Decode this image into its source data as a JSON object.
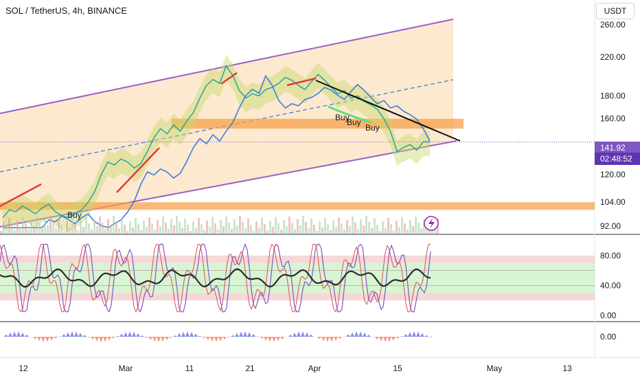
{
  "header": {
    "title": "SOL / TetherUS, 4h, BINANCE",
    "currency": "USDT"
  },
  "price_label": {
    "price": "141.92",
    "countdown": "02:48:52"
  },
  "colors": {
    "channel": "#9c5fc4",
    "zone": "#f7a24b",
    "cloud_fill": "#f9d7a8",
    "rsi_line": "#7e57c2",
    "stoch_line": "#e04b5b",
    "rsi_mid": "#2b2b2b",
    "resistance": "#111111"
  },
  "chart_data": [
    {
      "type": "line",
      "title": "SOL / TetherUS, 4h, BINANCE",
      "x_ticks": [
        "12",
        "Mar",
        "11",
        "21",
        "Apr",
        "15",
        "May",
        "13"
      ],
      "y_ticks": [
        "260.00",
        "220.00",
        "180.00",
        "160.00",
        "120.00",
        "104.00",
        "92.00"
      ],
      "y_range": [
        90,
        290
      ],
      "scale": "log",
      "last_price": 141.92,
      "series": [
        {
          "values": [
            96,
            100,
            99,
            102,
            100,
            98,
            101,
            103,
            99,
            97,
            96,
            98,
            100,
            104,
            110,
            120,
            128,
            126,
            130,
            128,
            124,
            127,
            135,
            145,
            152,
            148,
            155,
            150,
            158,
            165,
            178,
            190,
            196,
            192,
            210,
            200,
            185,
            178,
            182,
            180,
            186,
            188,
            192,
            198,
            195,
            190,
            186,
            194,
            201,
            195,
            188,
            182,
            185,
            178,
            180,
            175,
            172,
            168,
            160,
            150,
            135,
            138,
            140,
            136,
            142,
            141.92
          ]
        }
      ],
      "annotations": [
        "Buy",
        "Buy",
        "Buy",
        "Buy"
      ],
      "zones": [
        {
          "from": 152,
          "to": 160
        },
        {
          "from": 100,
          "to": 104
        }
      ]
    },
    {
      "type": "line",
      "y_ticks": [
        "80.00",
        "40.00",
        "0.00"
      ],
      "y_range": [
        0,
        100
      ],
      "bands": [
        {
          "from": 70,
          "to": 80
        },
        {
          "from": 20,
          "to": 30
        },
        {
          "from": 30,
          "to": 70
        }
      ]
    },
    {
      "type": "area",
      "y_ticks": [
        "0.00"
      ]
    }
  ]
}
